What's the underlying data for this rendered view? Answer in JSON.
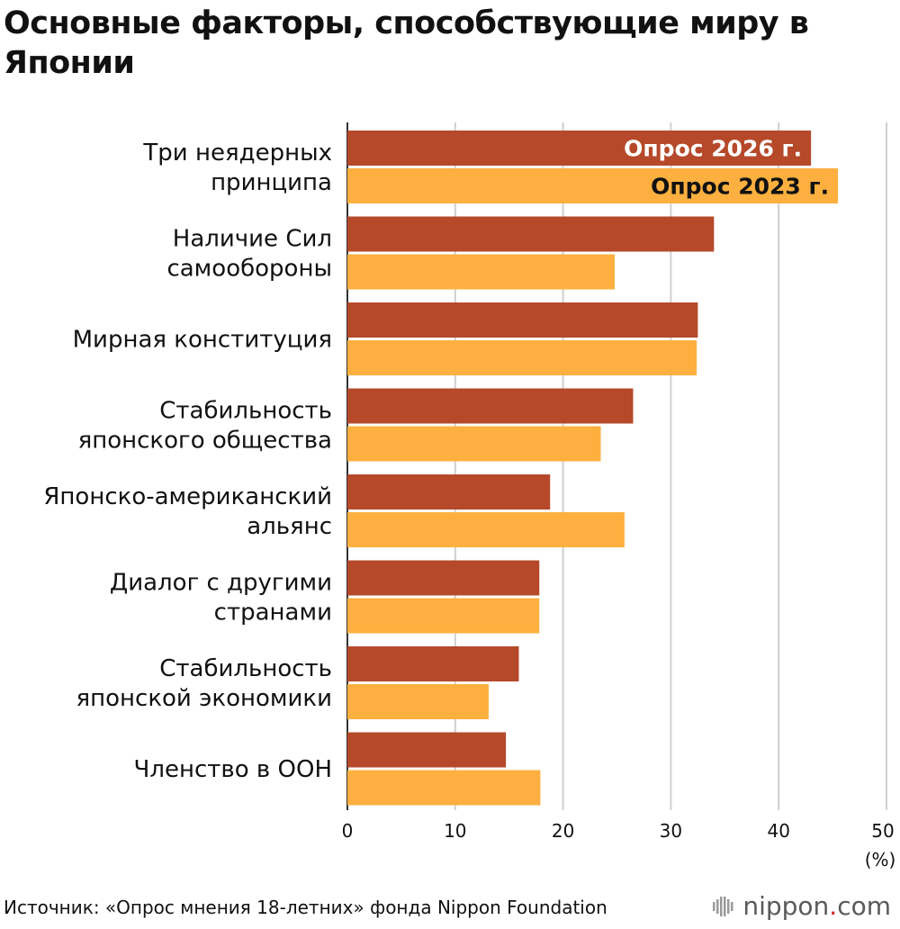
{
  "chart_data": {
    "type": "bar",
    "orientation": "horizontal",
    "title": "Основные факторы, способствующие миру в Японии",
    "categories": [
      [
        "Три неядерных",
        "принципа"
      ],
      [
        "Наличие Сил",
        "самообороны"
      ],
      [
        "Мирная конституция"
      ],
      [
        "Стабильность",
        "японского общества"
      ],
      [
        "Японско-американский",
        "альянс"
      ],
      [
        "Диалог с другими",
        "странами"
      ],
      [
        "Стабильность",
        "японской экономики"
      ],
      [
        "Членство в ООН"
      ]
    ],
    "series": [
      {
        "name": "Опрос 2026 г.",
        "color": "#b5492a",
        "label_color": "#ffffff",
        "values": [
          43.0,
          34.0,
          32.5,
          26.5,
          18.8,
          17.8,
          15.9,
          14.7
        ]
      },
      {
        "name": "Опрос 2023 г.",
        "color": "#fdb03f",
        "label_color": "#111111",
        "values": [
          45.5,
          24.8,
          32.4,
          23.5,
          25.7,
          17.8,
          13.1,
          17.9
        ]
      }
    ],
    "xlim": [
      0,
      50
    ],
    "xticks": [
      0,
      10,
      20,
      30,
      40,
      50
    ],
    "xunit": "(%)",
    "grid": true,
    "legend": "inside-top-bars"
  },
  "source": "Источник: «Опрос мнения 18-летних» фонда Nippon Foundation",
  "brand": {
    "name": "nippon",
    "dot": ".",
    "suffix": "com",
    "icon": "nippon-logo-icon"
  }
}
